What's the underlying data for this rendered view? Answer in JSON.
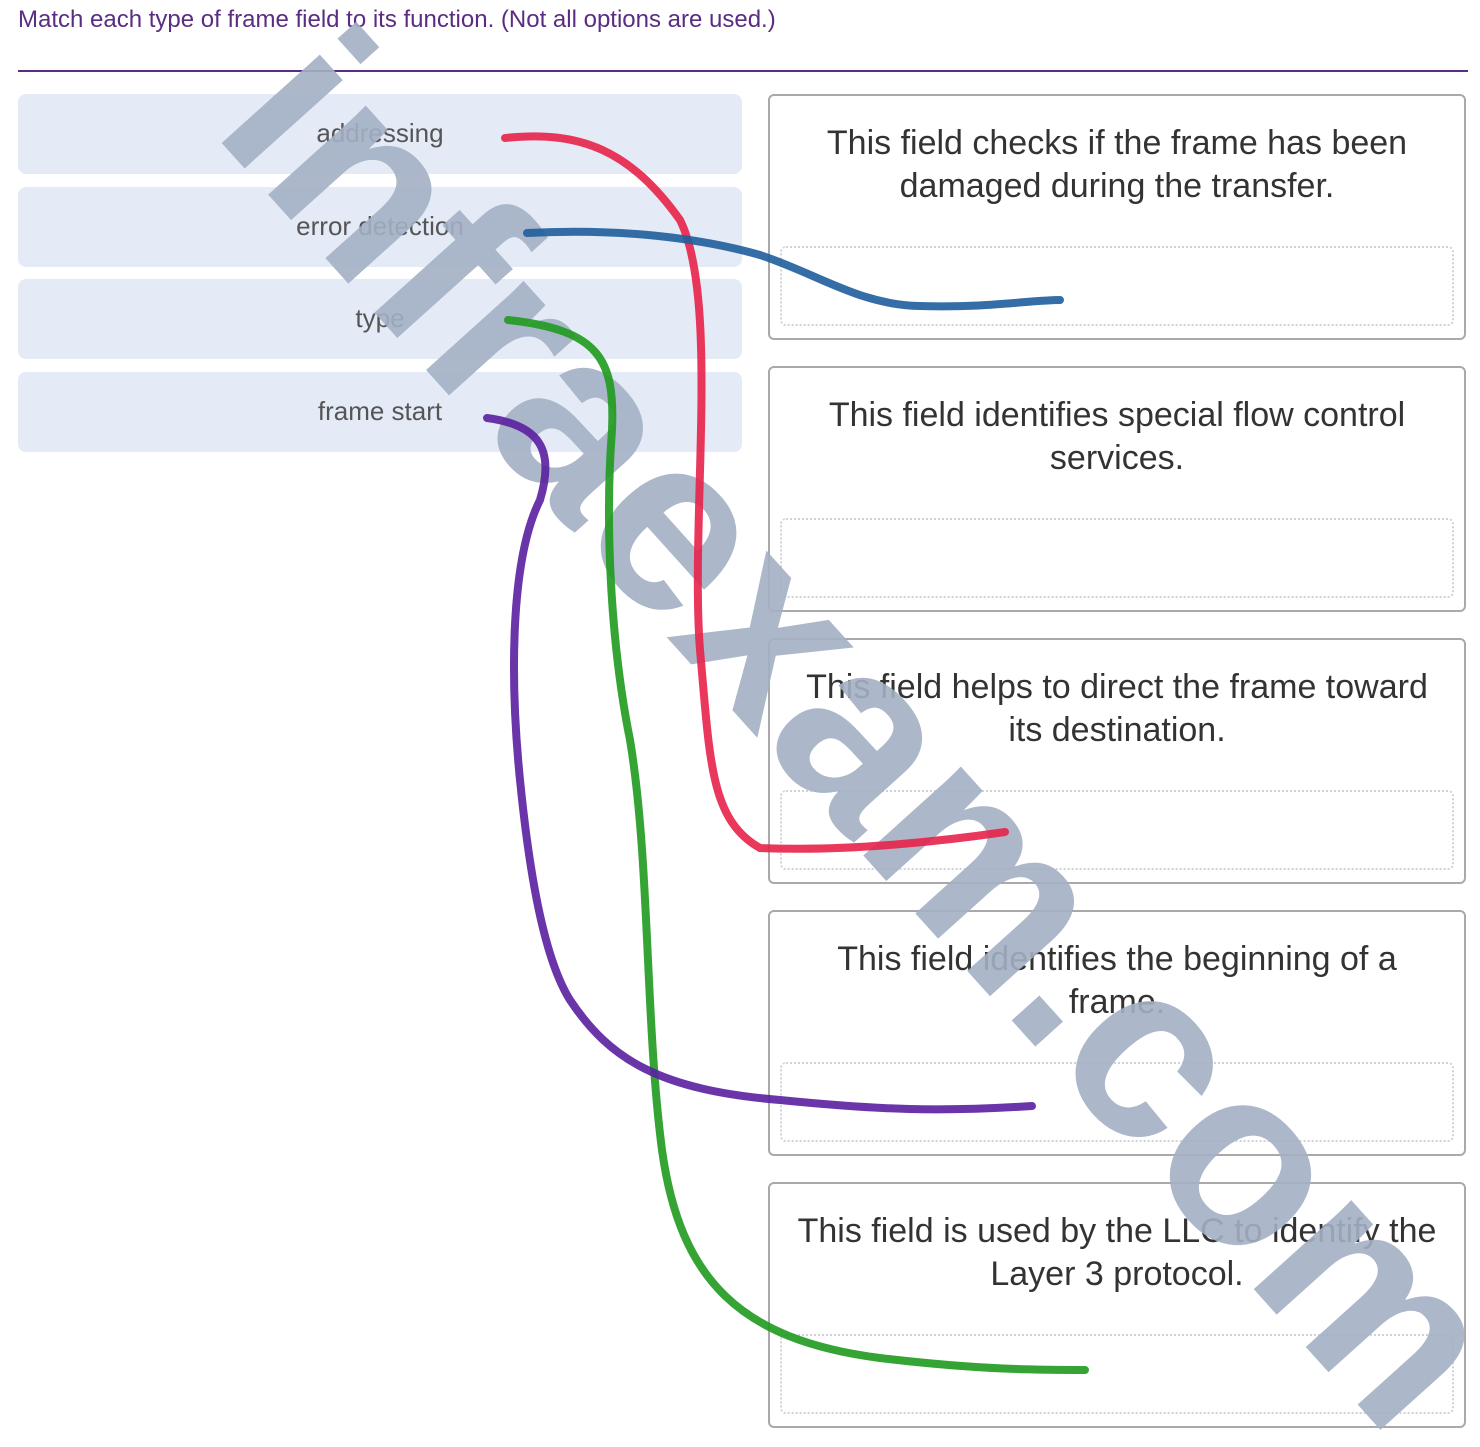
{
  "instruction": "Match each type of frame field to its function. (Not all options are used.)",
  "options": [
    {
      "label": "addressing"
    },
    {
      "label": "error detection"
    },
    {
      "label": "type"
    },
    {
      "label": "frame start"
    }
  ],
  "targets": [
    {
      "text": "This field checks if the frame has been damaged during the transfer."
    },
    {
      "text": "This field identifies special flow control services."
    },
    {
      "text": "This field helps to direct the frame toward its destination."
    },
    {
      "text": "This field identifies the beginning of a frame."
    },
    {
      "text": "This field is used by the LLC to identify the Layer 3 protocol."
    }
  ],
  "annotations": {
    "addressing": {
      "color": "#e8224a",
      "target": "This field helps to direct the frame toward its destination."
    },
    "error_detection": {
      "color": "#1f5e9c",
      "target": "This field checks if the frame has been damaged during the transfer."
    },
    "type": {
      "color": "#1f9a1f",
      "target": "This field is used by the LLC to identify the Layer 3 protocol."
    },
    "frame_start": {
      "color": "#5a1fa0",
      "target": "This field identifies the beginning of a frame."
    }
  },
  "watermark": {
    "text": "infraexam.com",
    "color": "#a3b0c4"
  }
}
